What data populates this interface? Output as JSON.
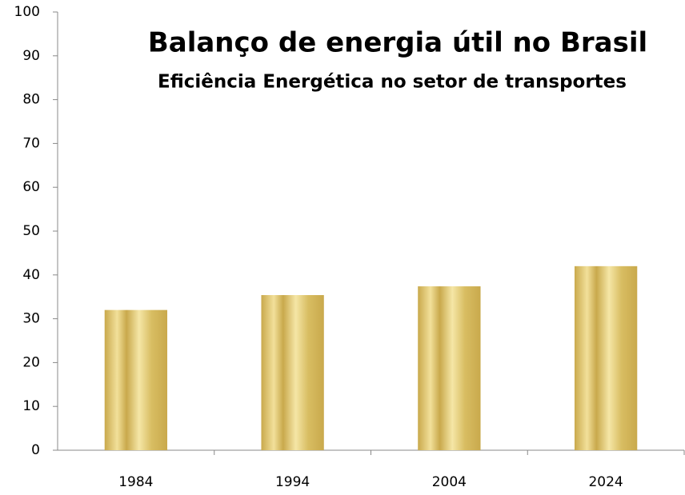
{
  "chart_data": {
    "type": "bar",
    "title": "Balanço de energia útil no Brasil",
    "subtitle": "Eficiência Energética no setor de transportes",
    "categories": [
      "1984",
      "1994",
      "2004",
      "2024"
    ],
    "values": [
      32,
      35.4,
      37.4,
      42
    ],
    "color": "#c9a94c",
    "ylim": [
      0,
      100
    ],
    "yticks": [
      0,
      10,
      20,
      30,
      40,
      50,
      60,
      70,
      80,
      90,
      100
    ],
    "grid": false
  }
}
